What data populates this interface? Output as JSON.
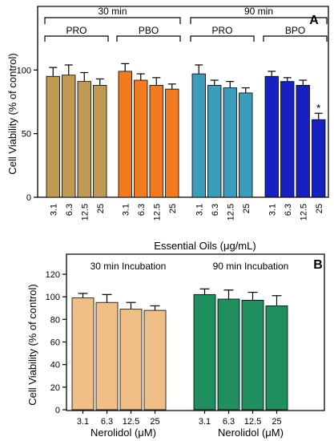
{
  "chart_data": [
    {
      "type": "bar",
      "panel_label": "A",
      "ylabel": "Cell Viability (% of control)",
      "xlabel": "Essential Oils (μg/mL)",
      "ylim": [
        0,
        150
      ],
      "yticks": [
        "0",
        "50",
        "100"
      ],
      "grid": false,
      "bracket_labels": {
        "time1": "30 min",
        "time2": "90 min"
      },
      "groups": [
        {
          "name": "PRO",
          "time": "30 min",
          "color": "#c09a55",
          "categories": [
            "3.1",
            "6.3",
            "12.5",
            "25"
          ],
          "values": [
            95,
            96,
            91,
            88
          ],
          "errors": [
            7,
            8,
            7,
            5
          ],
          "marks": [
            "",
            "",
            "",
            ""
          ]
        },
        {
          "name": "PBO",
          "time": "30 min",
          "color": "#f47a1f",
          "categories": [
            "3.1",
            "6.3",
            "12.5",
            "25"
          ],
          "values": [
            99,
            92,
            88,
            85
          ],
          "errors": [
            6,
            5,
            6,
            4
          ],
          "marks": [
            "",
            "",
            "",
            ""
          ]
        },
        {
          "name": "PRO",
          "time": "90 min",
          "color": "#3b9dbb",
          "categories": [
            "3.1",
            "6.3",
            "12.5",
            "25"
          ],
          "values": [
            97,
            88,
            86,
            82
          ],
          "errors": [
            7,
            4,
            5,
            4
          ],
          "marks": [
            "",
            "",
            "",
            ""
          ]
        },
        {
          "name": "BPO",
          "time": "90 min",
          "color": "#1720c0",
          "categories": [
            "3.1",
            "6.3",
            "12.5",
            "25"
          ],
          "values": [
            95,
            91,
            88,
            61
          ],
          "errors": [
            4,
            3,
            4,
            5
          ],
          "marks": [
            "",
            "",
            "",
            "*"
          ]
        }
      ]
    },
    {
      "type": "bar",
      "panel_label": "B",
      "ylabel": "Cell Viability (% of control)",
      "ylim": [
        0,
        120
      ],
      "yticks": [
        "0",
        "20",
        "40",
        "60",
        "80",
        "100",
        "120"
      ],
      "grid": false,
      "groups": [
        {
          "title": "30 min Incubation",
          "xlabel": "Nerolidol (μM)",
          "color": "#f0bf88",
          "categories": [
            "3.1",
            "6.3",
            "12.5",
            "25"
          ],
          "values": [
            99,
            95,
            89,
            88
          ],
          "errors": [
            4,
            7,
            6,
            4
          ]
        },
        {
          "title": "90 min Incubation",
          "xlabel": "Nerolidol (μM)",
          "color": "#1f8f5f",
          "categories": [
            "3.1",
            "6.3",
            "12.5",
            "25"
          ],
          "values": [
            102,
            98,
            97,
            92
          ],
          "errors": [
            5,
            8,
            7,
            9
          ]
        }
      ]
    }
  ]
}
